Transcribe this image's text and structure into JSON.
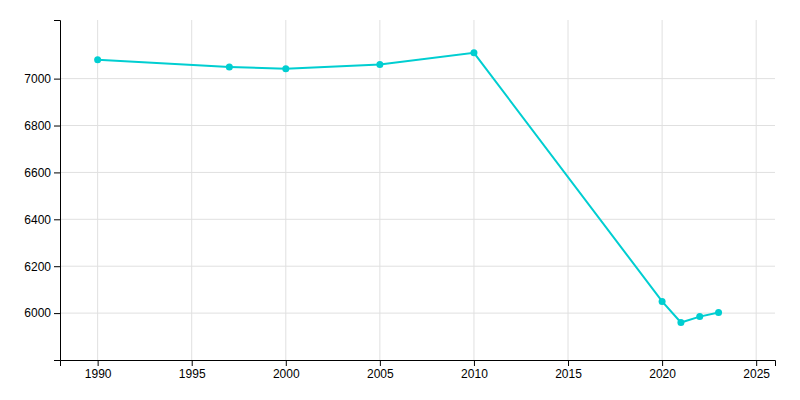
{
  "chart_data": {
    "type": "line",
    "x": [
      1990,
      1997,
      2000,
      2005,
      2010,
      2020,
      2021,
      2022,
      2023
    ],
    "values": [
      7080,
      7050,
      7042,
      7060,
      7110,
      6050,
      5960,
      5985,
      6003
    ],
    "color": "#00CED1",
    "marker": "circle",
    "xlim": [
      1988,
      2026
    ],
    "ylim": [
      5800,
      7250
    ],
    "xticks": [
      1990,
      1995,
      2000,
      2005,
      2010,
      2015,
      2020,
      2025
    ],
    "yticks": [
      6000,
      6200,
      6400,
      6600,
      6800,
      7000
    ],
    "grid": true
  }
}
